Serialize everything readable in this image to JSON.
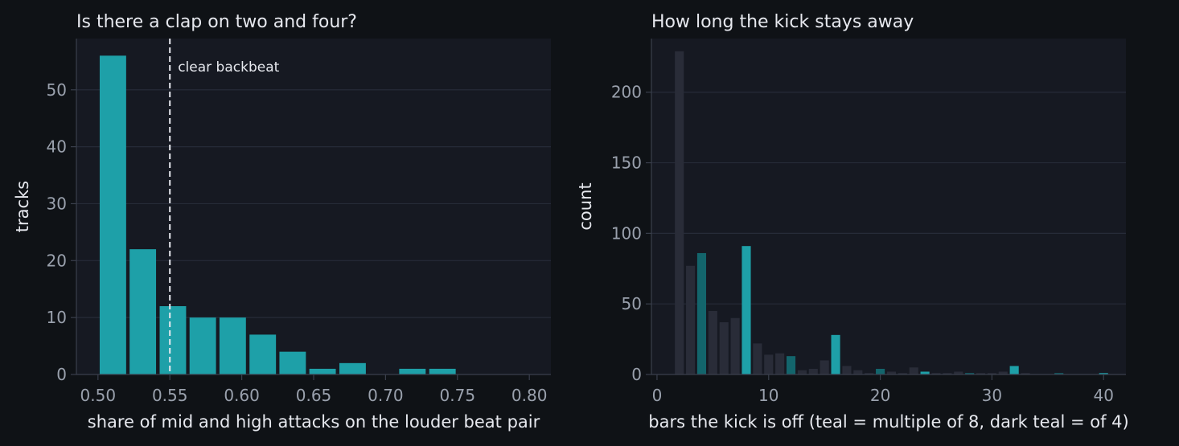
{
  "colors": {
    "background": "#0f1216",
    "panel": "#161922",
    "teal": "#1ea0a8",
    "dark_teal": "#13656c",
    "muted": "#292c38",
    "text": "#e6e8ee",
    "tick_text": "#9aa1ad",
    "threshold_line": "#e6e8ee"
  },
  "chart_data": [
    {
      "type": "bar",
      "title": "Is there a clap on two and four?",
      "xlabel": "share of mid and high attacks on the louder beat pair",
      "ylabel": "tracks",
      "xlim": [
        0.485,
        0.815
      ],
      "ylim": [
        0,
        59
      ],
      "xticks": [
        0.5,
        0.55,
        0.6,
        0.65,
        0.7,
        0.75,
        0.8
      ],
      "xtick_labels": [
        "0.50",
        "0.55",
        "0.60",
        "0.65",
        "0.70",
        "0.75",
        "0.80"
      ],
      "yticks": [
        0,
        10,
        20,
        30,
        40,
        50
      ],
      "ytick_labels": [
        "0",
        "10",
        "20",
        "30",
        "40",
        "50"
      ],
      "grid": "horizontal",
      "bin_width": 0.0208,
      "bins": [
        {
          "x0": 0.5,
          "value": 56
        },
        {
          "x0": 0.5208,
          "value": 22
        },
        {
          "x0": 0.5417,
          "value": 12
        },
        {
          "x0": 0.5625,
          "value": 10
        },
        {
          "x0": 0.5833,
          "value": 10
        },
        {
          "x0": 0.6042,
          "value": 7
        },
        {
          "x0": 0.625,
          "value": 4
        },
        {
          "x0": 0.6458,
          "value": 1
        },
        {
          "x0": 0.6667,
          "value": 2
        },
        {
          "x0": 0.6875,
          "value": 0
        },
        {
          "x0": 0.7083,
          "value": 1
        },
        {
          "x0": 0.7292,
          "value": 1
        },
        {
          "x0": 0.75,
          "value": 0
        },
        {
          "x0": 0.7708,
          "value": 0
        },
        {
          "x0": 0.7917,
          "value": 0
        }
      ],
      "annotations": [
        {
          "type": "vline",
          "x": 0.55,
          "style": "dashed",
          "text": "clear backbeat"
        }
      ]
    },
    {
      "type": "bar",
      "title": "How long the kick stays away",
      "xlabel": "bars the kick is off (teal = multiple of 8, dark teal = of 4)",
      "ylabel": "count",
      "xlim": [
        -0.5,
        42
      ],
      "ylim": [
        0,
        238
      ],
      "xticks": [
        0,
        10,
        20,
        30,
        40
      ],
      "xtick_labels": [
        "0",
        "10",
        "20",
        "30",
        "40"
      ],
      "yticks": [
        0,
        50,
        100,
        150,
        200
      ],
      "ytick_labels": [
        "0",
        "50",
        "100",
        "150",
        "200"
      ],
      "grid": "horizontal",
      "bar_width": 0.8,
      "bars": [
        {
          "x": 2,
          "value": 229,
          "category": "other"
        },
        {
          "x": 3,
          "value": 77,
          "category": "other"
        },
        {
          "x": 4,
          "value": 86,
          "category": "multiple of 4"
        },
        {
          "x": 5,
          "value": 45,
          "category": "other"
        },
        {
          "x": 6,
          "value": 37,
          "category": "other"
        },
        {
          "x": 7,
          "value": 40,
          "category": "other"
        },
        {
          "x": 8,
          "value": 91,
          "category": "multiple of 8"
        },
        {
          "x": 9,
          "value": 22,
          "category": "other"
        },
        {
          "x": 10,
          "value": 14,
          "category": "other"
        },
        {
          "x": 11,
          "value": 15,
          "category": "other"
        },
        {
          "x": 12,
          "value": 13,
          "category": "multiple of 4"
        },
        {
          "x": 13,
          "value": 3,
          "category": "other"
        },
        {
          "x": 14,
          "value": 4,
          "category": "other"
        },
        {
          "x": 15,
          "value": 10,
          "category": "other"
        },
        {
          "x": 16,
          "value": 28,
          "category": "multiple of 8"
        },
        {
          "x": 17,
          "value": 6,
          "category": "other"
        },
        {
          "x": 18,
          "value": 3,
          "category": "other"
        },
        {
          "x": 19,
          "value": 1,
          "category": "other"
        },
        {
          "x": 20,
          "value": 4,
          "category": "multiple of 4"
        },
        {
          "x": 21,
          "value": 2,
          "category": "other"
        },
        {
          "x": 22,
          "value": 1,
          "category": "other"
        },
        {
          "x": 23,
          "value": 5,
          "category": "other"
        },
        {
          "x": 24,
          "value": 2,
          "category": "multiple of 8"
        },
        {
          "x": 25,
          "value": 1,
          "category": "other"
        },
        {
          "x": 26,
          "value": 1,
          "category": "other"
        },
        {
          "x": 27,
          "value": 2,
          "category": "other"
        },
        {
          "x": 28,
          "value": 1,
          "category": "multiple of 4"
        },
        {
          "x": 29,
          "value": 1,
          "category": "other"
        },
        {
          "x": 30,
          "value": 1,
          "category": "other"
        },
        {
          "x": 31,
          "value": 2,
          "category": "other"
        },
        {
          "x": 32,
          "value": 6,
          "category": "multiple of 8"
        },
        {
          "x": 33,
          "value": 1,
          "category": "other"
        },
        {
          "x": 36,
          "value": 1,
          "category": "multiple of 4"
        },
        {
          "x": 40,
          "value": 1,
          "category": "multiple of 8"
        }
      ]
    }
  ]
}
